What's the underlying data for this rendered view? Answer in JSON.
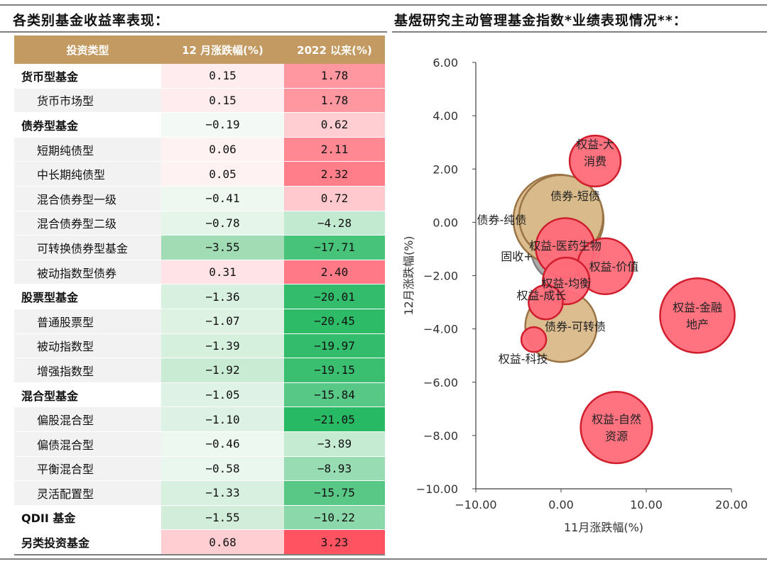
{
  "left_title": "各类别基金收益率表现：",
  "right_title": "基煜研究主动管理基金指数*业绩表现情况**：",
  "table": {
    "headers": [
      "投资类型",
      "12 月涨跌幅(%)",
      "2022 以来(%)"
    ],
    "rows": [
      {
        "name": "货币型基金",
        "level": "cat",
        "dec": "0.15",
        "ytd": "1.78"
      },
      {
        "name": "货币市场型",
        "level": "sub",
        "dec": "0.15",
        "ytd": "1.78"
      },
      {
        "name": "债券型基金",
        "level": "cat",
        "dec": "−0.19",
        "ytd": "0.62"
      },
      {
        "name": "短期纯债型",
        "level": "sub",
        "dec": "0.06",
        "ytd": "2.11"
      },
      {
        "name": "中长期纯债型",
        "level": "sub",
        "dec": "0.05",
        "ytd": "2.32"
      },
      {
        "name": "混合债券型一级",
        "level": "sub",
        "dec": "−0.41",
        "ytd": "0.72"
      },
      {
        "name": "混合债券型二级",
        "level": "sub",
        "dec": "−0.78",
        "ytd": "−4.28"
      },
      {
        "name": "可转换债券型基金",
        "level": "sub",
        "dec": "−3.55",
        "ytd": "−17.71"
      },
      {
        "name": "被动指数型债券",
        "level": "sub",
        "dec": "0.31",
        "ytd": "2.40"
      },
      {
        "name": "股票型基金",
        "level": "cat",
        "dec": "−1.36",
        "ytd": "−20.01"
      },
      {
        "name": "普通股票型",
        "level": "sub",
        "dec": "−1.07",
        "ytd": "−20.45"
      },
      {
        "name": "被动指数型",
        "level": "sub",
        "dec": "−1.39",
        "ytd": "−19.97"
      },
      {
        "name": "增强指数型",
        "level": "sub",
        "dec": "−1.92",
        "ytd": "−19.15"
      },
      {
        "name": "混合型基金",
        "level": "cat",
        "dec": "−1.05",
        "ytd": "−15.84"
      },
      {
        "name": "偏股混合型",
        "level": "sub",
        "dec": "−1.10",
        "ytd": "−21.05"
      },
      {
        "name": "偏债混合型",
        "level": "sub",
        "dec": "−0.46",
        "ytd": "−3.89"
      },
      {
        "name": "平衡混合型",
        "level": "sub",
        "dec": "−0.58",
        "ytd": "−8.93"
      },
      {
        "name": "灵活配置型",
        "level": "sub",
        "dec": "−1.33",
        "ytd": "−15.75"
      },
      {
        "name": "QDII 基金",
        "level": "cat",
        "dec": "−1.55",
        "ytd": "−10.22"
      },
      {
        "name": "另类投资基金",
        "level": "cat",
        "dec": "0.68",
        "ytd": "3.23"
      }
    ]
  },
  "chart_data": {
    "type": "scatter",
    "xlabel": "11月涨跌幅(%)",
    "ylabel": "12月涨跌幅(%)",
    "xlim": [
      -10,
      20
    ],
    "ylim": [
      -10,
      6
    ],
    "x_ticks": [
      "−10.00",
      "0.00",
      "10.00",
      "20.00"
    ],
    "y_ticks": [
      "6.00",
      "4.00",
      "2.00",
      "0.00",
      "−2.00",
      "−4.00",
      "−6.00",
      "−8.00",
      "−10.00"
    ],
    "colors": {
      "bond": "#d9b98a",
      "equity": "#ff6b7a",
      "fixed_plus": "#a6a6a6",
      "bond_edge": "#9a7445",
      "equity_edge": "#d01e2d"
    },
    "points": [
      {
        "label": "固收+",
        "x": 0.5,
        "y": -1.0,
        "size": 1.1,
        "group": "fixed_plus"
      },
      {
        "label": "债券-纯债",
        "x": -0.3,
        "y": 0.1,
        "size": 1.45,
        "group": "bond"
      },
      {
        "label": "债券-短债",
        "x": 0.0,
        "y": 0.2,
        "size": 1.35,
        "group": "bond"
      },
      {
        "label": "债券-可转债",
        "x": 0.0,
        "y": -3.9,
        "size": 1.15,
        "group": "bond"
      },
      {
        "label": "权益-大消费",
        "x": 4.0,
        "y": 2.3,
        "size": 0.82,
        "group": "equity"
      },
      {
        "label": "权益-医药生物",
        "x": 0.5,
        "y": -0.95,
        "size": 0.95,
        "group": "equity"
      },
      {
        "label": "权益-价值",
        "x": 5.2,
        "y": -1.65,
        "size": 0.9,
        "group": "equity"
      },
      {
        "label": "权益-均衡",
        "x": 0.6,
        "y": -2.2,
        "size": 0.75,
        "group": "equity"
      },
      {
        "label": "权益-成长",
        "x": -1.8,
        "y": -3.0,
        "size": 0.55,
        "group": "equity"
      },
      {
        "label": "权益-金融地产",
        "x": 16.0,
        "y": -3.5,
        "size": 1.2,
        "group": "equity"
      },
      {
        "label": "权益-科技",
        "x": -3.2,
        "y": -4.4,
        "size": 0.4,
        "group": "equity"
      },
      {
        "label": "权益-自然资源",
        "x": 6.5,
        "y": -7.7,
        "size": 1.15,
        "group": "equity"
      }
    ]
  }
}
